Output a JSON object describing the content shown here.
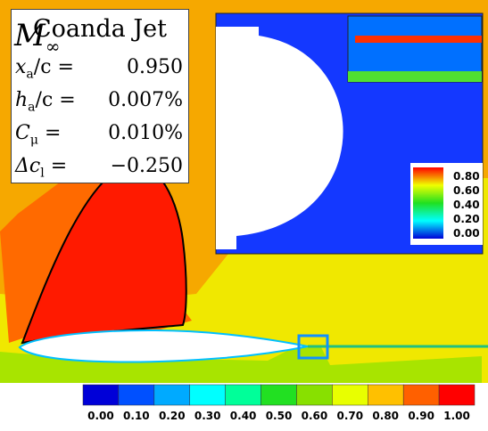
{
  "legend_box": {
    "title": "Coanda Jet",
    "rows": [
      {
        "symbol": "x",
        "sub": "a",
        "rest": "/c =",
        "value": "0.950"
      },
      {
        "symbol": "h",
        "sub": "a",
        "rest": "/c =",
        "value": "0.007%"
      },
      {
        "symbol": "C",
        "sub": "μ",
        "rest": " =",
        "value": "0.010%"
      },
      {
        "symbol": "Δc",
        "sub": "l",
        "rest": " =",
        "value": "−0.250"
      }
    ]
  },
  "inset_colorbar": {
    "labels": [
      "0.80",
      "0.60",
      "0.40",
      "0.20",
      "0.00"
    ]
  },
  "colorbar": {
    "symbol": "M",
    "sub": "∞",
    "labels": [
      "0.00",
      "0.10",
      "0.20",
      "0.30",
      "0.40",
      "0.50",
      "0.60",
      "0.70",
      "0.80",
      "0.90",
      "1.00"
    ],
    "colors": [
      "#0000d8",
      "#0050ff",
      "#00aaff",
      "#00ffff",
      "#00ff99",
      "#22e022",
      "#88e000",
      "#e8ff00",
      "#ffc000",
      "#ff6000",
      "#ff0000"
    ]
  }
}
